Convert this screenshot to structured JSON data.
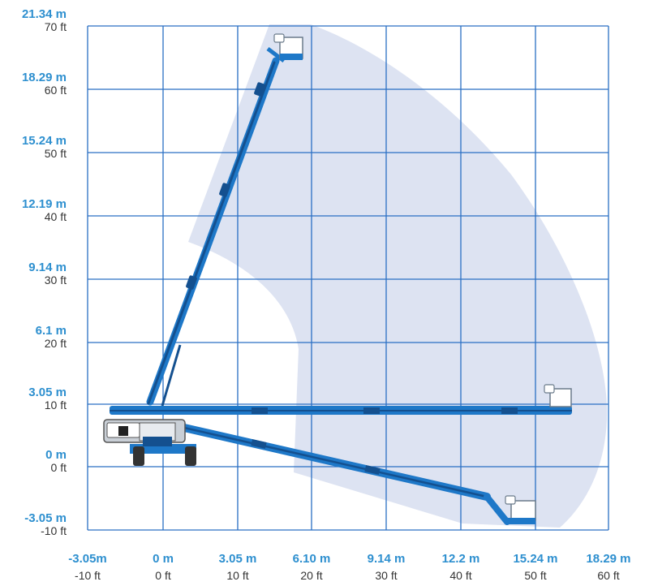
{
  "colors": {
    "accent": "#2d8fcf",
    "grid": "#2a6fc4",
    "envelope": "#dde3f2",
    "machine": "#1e78c8",
    "label_text": "#333333"
  },
  "y_axis": {
    "ticks": [
      {
        "m": "21.34 m",
        "ft": "70 ft"
      },
      {
        "m": "18.29 m",
        "ft": "60 ft"
      },
      {
        "m": "15.24 m",
        "ft": "50 ft"
      },
      {
        "m": "12.19 m",
        "ft": "40 ft"
      },
      {
        "m": "9.14 m",
        "ft": "30 ft"
      },
      {
        "m": "6.1 m",
        "ft": "20 ft"
      },
      {
        "m": "3.05 m",
        "ft": "10 ft"
      },
      {
        "m": "0 m",
        "ft": "0 ft"
      },
      {
        "m": "-3.05 m",
        "ft": "-10 ft"
      }
    ]
  },
  "x_axis": {
    "ticks": [
      {
        "m": "-3.05m",
        "ft": "-10 ft"
      },
      {
        "m": "0 m",
        "ft": "0 ft"
      },
      {
        "m": "3.05 m",
        "ft": "10 ft"
      },
      {
        "m": "6.10 m",
        "ft": "20 ft"
      },
      {
        "m": "9.14 m",
        "ft": "30 ft"
      },
      {
        "m": "12.2 m",
        "ft": "40 ft"
      },
      {
        "m": "15.24 m",
        "ft": "50 ft"
      },
      {
        "m": "18.29 m",
        "ft": "60 ft"
      }
    ]
  },
  "boom_positions": [
    "vertical",
    "horizontal",
    "below-grade"
  ]
}
